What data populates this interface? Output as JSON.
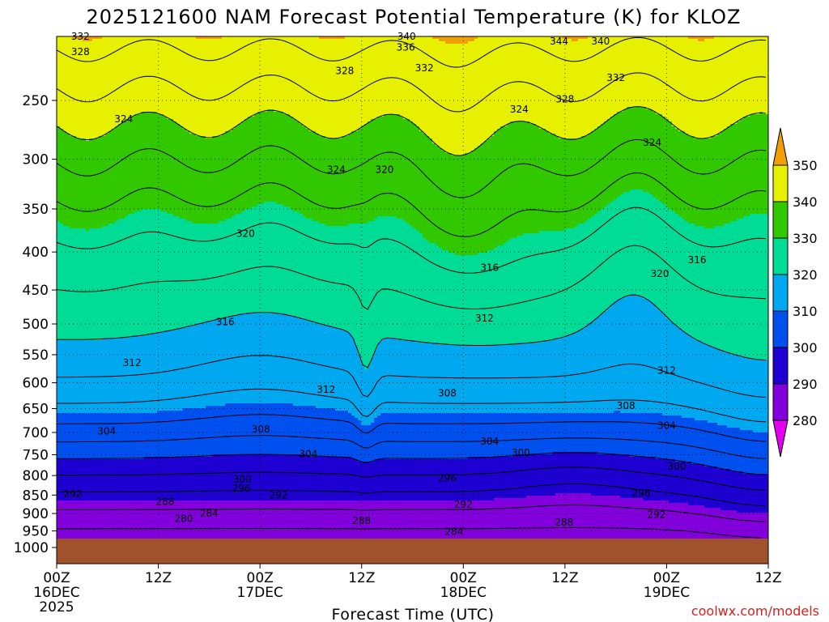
{
  "chart_data": {
    "type": "heatmap",
    "title": "2025121600 NAM Forecast Potential Temperature (K) for KLOZ",
    "xlabel": "Forecast Time (UTC)",
    "ylabel": "",
    "credit": "coolwx.com/models",
    "y_scale": "log",
    "ylim": [
      1000,
      200
    ],
    "y_ticks": [
      250,
      300,
      350,
      400,
      450,
      500,
      550,
      600,
      650,
      700,
      750,
      800,
      850,
      900,
      950,
      1000
    ],
    "x_ticks": [
      {
        "hour": 0,
        "label": "00Z",
        "sub": "16DEC",
        "sub2": "2025"
      },
      {
        "hour": 12,
        "label": "12Z",
        "sub": "",
        "sub2": ""
      },
      {
        "hour": 24,
        "label": "00Z",
        "sub": "17DEC",
        "sub2": ""
      },
      {
        "hour": 36,
        "label": "12Z",
        "sub": "",
        "sub2": ""
      },
      {
        "hour": 48,
        "label": "00Z",
        "sub": "18DEC",
        "sub2": ""
      },
      {
        "hour": 60,
        "label": "12Z",
        "sub": "",
        "sub2": ""
      },
      {
        "hour": 72,
        "label": "00Z",
        "sub": "19DEC",
        "sub2": ""
      },
      {
        "hour": 84,
        "label": "12Z",
        "sub": "",
        "sub2": ""
      }
    ],
    "xlim": [
      0,
      84
    ],
    "grid": true,
    "legend": "right",
    "colorbar": {
      "levels": [
        280,
        290,
        300,
        310,
        320,
        330,
        340,
        350
      ],
      "colors": [
        "#e600f0",
        "#8200dc",
        "#1e00d2",
        "#0050f0",
        "#00a8f0",
        "#00dc96",
        "#32c800",
        "#e6f000",
        "#f0a000"
      ],
      "extend": "both"
    },
    "contour_interval": 4,
    "contour_labels": [
      {
        "hour": 2.8,
        "p": 205,
        "value": 332
      },
      {
        "hour": 2.8,
        "p": 215,
        "value": 328
      },
      {
        "hour": 7.9,
        "p": 265,
        "value": 324
      },
      {
        "hour": 33.0,
        "p": 310,
        "value": 324
      },
      {
        "hour": 38.7,
        "p": 310,
        "value": 320
      },
      {
        "hour": 22.3,
        "p": 378,
        "value": 320
      },
      {
        "hour": 34.0,
        "p": 228,
        "value": 328
      },
      {
        "hour": 43.4,
        "p": 226,
        "value": 332
      },
      {
        "hour": 41.2,
        "p": 212,
        "value": 336
      },
      {
        "hour": 41.3,
        "p": 205,
        "value": 340
      },
      {
        "hour": 59.3,
        "p": 208,
        "value": 344
      },
      {
        "hour": 64.2,
        "p": 208,
        "value": 340
      },
      {
        "hour": 66.0,
        "p": 233,
        "value": 332
      },
      {
        "hour": 60.0,
        "p": 249,
        "value": 328
      },
      {
        "hour": 54.6,
        "p": 257,
        "value": 324
      },
      {
        "hour": 70.3,
        "p": 285,
        "value": 324
      },
      {
        "hour": 51.1,
        "p": 420,
        "value": 316
      },
      {
        "hour": 71.2,
        "p": 428,
        "value": 320
      },
      {
        "hour": 75.6,
        "p": 410,
        "value": 316
      },
      {
        "hour": 19.9,
        "p": 497,
        "value": 316
      },
      {
        "hour": 50.5,
        "p": 491,
        "value": 312
      },
      {
        "hour": 8.9,
        "p": 564,
        "value": 312
      },
      {
        "hour": 31.8,
        "p": 613,
        "value": 312
      },
      {
        "hour": 72.0,
        "p": 578,
        "value": 312
      },
      {
        "hour": 46.1,
        "p": 620,
        "value": 308
      },
      {
        "hour": 67.2,
        "p": 644,
        "value": 308
      },
      {
        "hour": 24.1,
        "p": 693,
        "value": 308
      },
      {
        "hour": 5.9,
        "p": 697,
        "value": 304
      },
      {
        "hour": 29.7,
        "p": 748,
        "value": 304
      },
      {
        "hour": 51.1,
        "p": 720,
        "value": 304
      },
      {
        "hour": 72.0,
        "p": 685,
        "value": 304
      },
      {
        "hour": 21.9,
        "p": 810,
        "value": 300
      },
      {
        "hour": 54.8,
        "p": 745,
        "value": 300
      },
      {
        "hour": 73.2,
        "p": 778,
        "value": 300
      },
      {
        "hour": 1.9,
        "p": 847,
        "value": 292
      },
      {
        "hour": 21.8,
        "p": 833,
        "value": 296
      },
      {
        "hour": 26.2,
        "p": 850,
        "value": 292
      },
      {
        "hour": 46.1,
        "p": 807,
        "value": 296
      },
      {
        "hour": 48.0,
        "p": 875,
        "value": 292
      },
      {
        "hour": 69.0,
        "p": 845,
        "value": 296
      },
      {
        "hour": 70.8,
        "p": 903,
        "value": 292
      },
      {
        "hour": 12.8,
        "p": 868,
        "value": 288
      },
      {
        "hour": 18.0,
        "p": 900,
        "value": 284
      },
      {
        "hour": 15.0,
        "p": 915,
        "value": 280
      },
      {
        "hour": 36.0,
        "p": 920,
        "value": 288
      },
      {
        "hour": 59.9,
        "p": 925,
        "value": 288
      },
      {
        "hour": 46.9,
        "p": 952,
        "value": 284
      }
    ],
    "terrain_surface_pressure_hpa": 968
  }
}
